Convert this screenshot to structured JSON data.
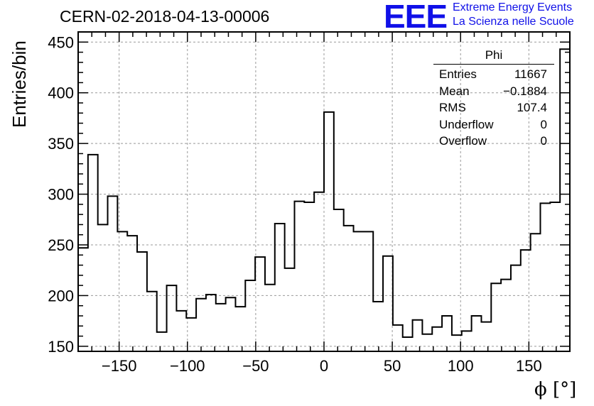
{
  "header": {
    "title": "CERN-02-2018-04-13-00006",
    "logo_text": "EEE",
    "logo_line1": "Extreme Energy Events",
    "logo_line2": "La Scienza nelle Scuole",
    "logo_color": "#1010e8"
  },
  "stats": {
    "title": "Phi",
    "rows": [
      {
        "label": "Entries",
        "value": "11667"
      },
      {
        "label": "Mean",
        "value": "−0.1884"
      },
      {
        "label": "RMS",
        "value": "107.4"
      },
      {
        "label": "Underflow",
        "value": "0"
      },
      {
        "label": "Overflow",
        "value": "0"
      }
    ]
  },
  "chart_data": {
    "type": "bar",
    "histogram": true,
    "title": "CERN-02-2018-04-13-00006",
    "xlabel": "ϕ [°]",
    "ylabel": "Entries/bin",
    "xlim": [
      -180,
      180
    ],
    "ylim": [
      145,
      460
    ],
    "bin_width": 7.2,
    "x_ticks": [
      -150,
      -100,
      -50,
      0,
      50,
      100,
      150
    ],
    "x_tick_labels": [
      "−150",
      "−100",
      "−50",
      "0",
      "50",
      "100",
      "150"
    ],
    "y_ticks": [
      150,
      200,
      250,
      300,
      350,
      400,
      450
    ],
    "y_tick_labels": [
      "150",
      "200",
      "250",
      "300",
      "350",
      "400",
      "450"
    ],
    "grid": true,
    "bin_edges": [
      -180,
      -172.8,
      -165.6,
      -158.4,
      -151.2,
      -144,
      -136.8,
      -129.6,
      -122.4,
      -115.2,
      -108,
      -100.8,
      -93.6,
      -86.4,
      -79.2,
      -72,
      -64.8,
      -57.6,
      -50.4,
      -43.2,
      -36,
      -28.8,
      -21.6,
      -14.4,
      -7.2,
      0,
      7.2,
      14.4,
      21.6,
      28.8,
      36,
      43.2,
      50.4,
      57.6,
      64.8,
      72,
      79.2,
      86.4,
      93.6,
      100.8,
      108,
      115.2,
      122.4,
      129.6,
      136.8,
      144,
      151.2,
      158.4,
      165.6,
      172.8,
      180
    ],
    "values": [
      247,
      339,
      270,
      298,
      263,
      259,
      243,
      204,
      164,
      210,
      185,
      178,
      197,
      201,
      192,
      198,
      189,
      215,
      238,
      211,
      271,
      227,
      293,
      292,
      302,
      381,
      285,
      269,
      263,
      263,
      194,
      239,
      171,
      159,
      176,
      162,
      169,
      180,
      161,
      165,
      180,
      174,
      212,
      216,
      230,
      245,
      261,
      291,
      292,
      443
    ],
    "line_color": "#000000"
  }
}
